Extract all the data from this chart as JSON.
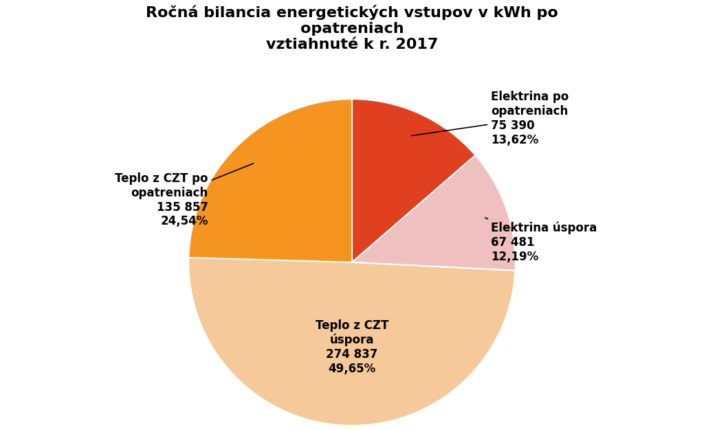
{
  "title": "Ročná bilancia energetických vstupov v kWh po\nopatreniach\nvztiahnuté k r. 2017",
  "slices": [
    {
      "label": "Elektrina po\nopatreniach\n75 390\n13,62%",
      "value": 13.62,
      "color": "#E04020",
      "ha": "left"
    },
    {
      "label": "Elektrina úspora\n67 481\n12,19%",
      "value": 12.19,
      "color": "#F0C0C0",
      "ha": "left"
    },
    {
      "label": "Teplo z CZT\núspora\n274 837\n49,65%",
      "value": 49.65,
      "color": "#F5C99A",
      "ha": "center"
    },
    {
      "label": "Teplo z CZT po\nopatreniach\n135 857\n24,54%",
      "value": 24.54,
      "color": "#F5941E",
      "ha": "right"
    }
  ],
  "background_color": "#FFFFFF",
  "title_fontsize": 16,
  "label_fontsize": 12
}
